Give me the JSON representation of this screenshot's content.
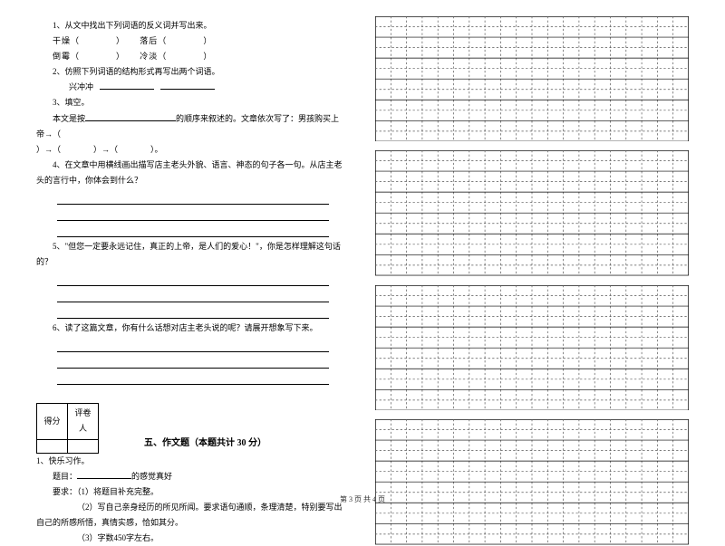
{
  "left": {
    "q1": "1、从文中找出下列词语的反义词并写出来。",
    "q1_pairs": [
      {
        "a": "干燥（",
        "gap": "　　　　",
        "b": "）",
        "c": "落后（",
        "gap2": "　　　　",
        "d": "）"
      },
      {
        "a": "倒霉（",
        "gap": "　　　　",
        "b": "）",
        "c": "冷淡（",
        "gap2": "　　　　",
        "d": "）"
      }
    ],
    "q2": "2、仿照下列词语的结构形式再写出两个词语。",
    "q2_word": "兴冲冲",
    "q3": "3、填空。",
    "q3_body_a": "本文是按",
    "q3_body_b": "的顺序来叙述的。文章依次写了：男孩购买上帝→（",
    "q3_tail": "）→（　　　　）→（　　　　）。",
    "q4": "4、在文章中用横线画出描写店主老头外貌、语言、神态的句子各一句。从店主老头的言行中，你体会到什么？",
    "q5": "5、\"但您一定要永远记住，真正的上帝，是人们的爱心！\"，你是怎样理解这句话的？",
    "q6": "6、读了这篇文章，你有什么话想对店主老头说的呢？请展开想象写下来。",
    "score_labels": {
      "score": "得分",
      "grader": "评卷人"
    },
    "section_title": "五、作文题（本题共计 30 分）",
    "composition": {
      "l1": "1、快乐习作。",
      "l2a": "题目：",
      "l2b": "的感觉真好",
      "req_label": "要求：",
      "r1": "（1）将题目补充完整。",
      "r2": "（2）写自己亲身经历的所见所闻。要求语句通顺，条理清楚，特别要写出自己的所感所悟，真情实感，恰如其分。",
      "r3": "（3）字数450字左右。"
    }
  },
  "grid": {
    "cols": 20,
    "rows_per_block": 6,
    "blocks": 4,
    "outer_stroke": "#000000",
    "dash_stroke": "#555555",
    "dash_pattern": "2,2",
    "line_width": 0.6
  },
  "footer": "第 3 页  共 4 页"
}
